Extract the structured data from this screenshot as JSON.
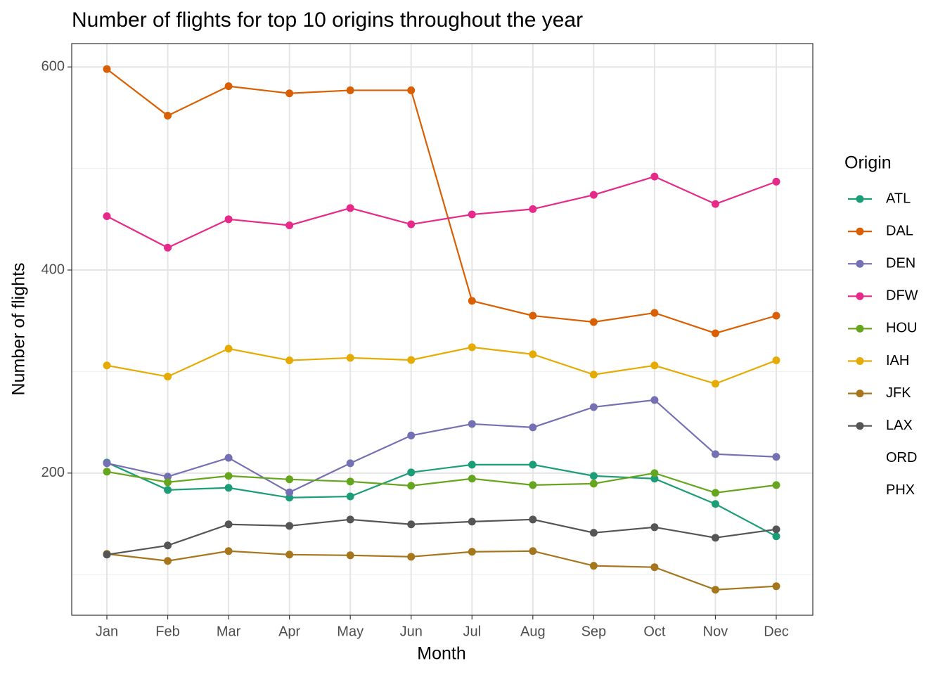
{
  "chart_data": {
    "type": "line",
    "title": "Number of flights for top 10 origins throughout the year",
    "x_label": "Month",
    "y_label": "Number of flights",
    "legend_title": "Origin",
    "categories": [
      "Jan",
      "Feb",
      "Mar",
      "Apr",
      "May",
      "Jun",
      "Jul",
      "Aug",
      "Sep",
      "Oct",
      "Nov",
      "Dec"
    ],
    "ylim": [
      60,
      623
    ],
    "yticks": [
      200,
      400,
      600
    ],
    "minor_yticks": [
      100,
      300,
      500
    ],
    "grid": true,
    "legend": "right",
    "series": [
      {
        "name": "ATL",
        "color": "#1b9e77",
        "values": [
          210.4,
          183.4,
          185.5,
          175.8,
          177,
          200.7,
          208.3,
          208.3,
          197.2,
          194.5,
          169.6,
          137.7
        ]
      },
      {
        "name": "DAL",
        "color": "#d95f02",
        "values": [
          597.9,
          552,
          581,
          574,
          577,
          577,
          369.6,
          355,
          348.8,
          357.8,
          337.7,
          355
        ]
      },
      {
        "name": "DEN",
        "color": "#7570b3",
        "values": [
          209.7,
          196.5,
          215,
          181,
          209.7,
          237,
          248.4,
          245,
          265,
          272,
          218.7,
          216
        ]
      },
      {
        "name": "DFW",
        "color": "#e7298a",
        "values": [
          453,
          422,
          450,
          444,
          461,
          445,
          454.7,
          460,
          474,
          492,
          465,
          487
        ]
      },
      {
        "name": "HOU",
        "color": "#66a61e",
        "values": [
          201.4,
          191,
          197.2,
          193.8,
          191.7,
          187.5,
          194.5,
          188.2,
          189.6,
          200,
          180.6,
          188.2
        ]
      },
      {
        "name": "IAH",
        "color": "#e6ab02",
        "values": [
          306,
          295,
          322.5,
          311,
          313.5,
          311.4,
          323.9,
          317,
          297,
          306,
          288,
          311
        ]
      },
      {
        "name": "JFK",
        "color": "#a6761d",
        "values": [
          120.4,
          113.5,
          123.2,
          119.7,
          119,
          117.6,
          122.5,
          123.2,
          108.7,
          107.3,
          85.1,
          88.6
        ]
      },
      {
        "name": "LAX",
        "color": "#555555",
        "values": [
          119.7,
          128.7,
          149.5,
          148,
          154.3,
          149.5,
          152.2,
          154.3,
          141.2,
          146.7,
          136.3,
          144.6
        ]
      },
      {
        "name": "ORD",
        "color": null,
        "values": [
          null,
          null,
          null,
          null,
          null,
          null,
          null,
          null,
          null,
          null,
          null,
          null
        ]
      },
      {
        "name": "PHX",
        "color": null,
        "values": [
          null,
          null,
          null,
          null,
          null,
          null,
          null,
          null,
          null,
          null,
          null,
          null
        ]
      }
    ]
  }
}
